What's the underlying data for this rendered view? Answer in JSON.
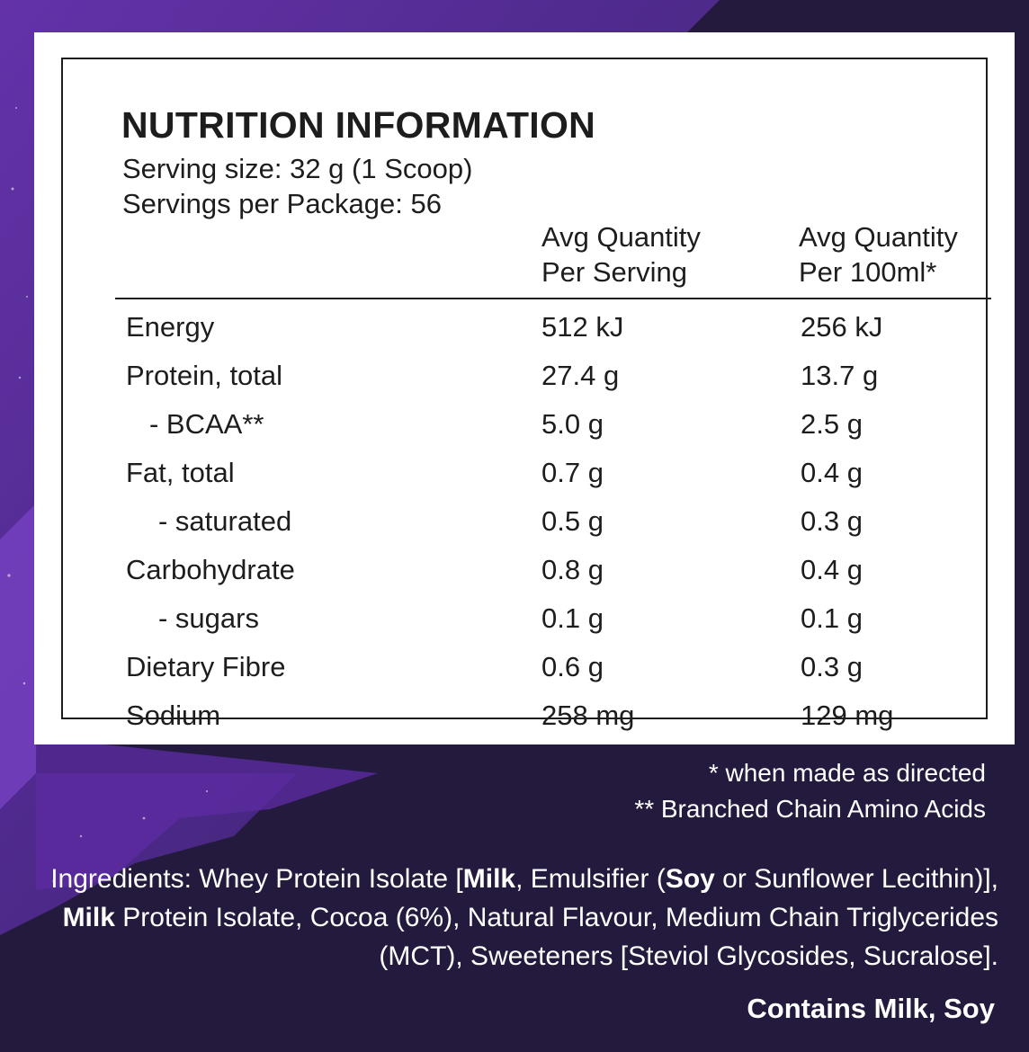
{
  "panel": {
    "title": "NUTRITION INFORMATION",
    "serving_size": "Serving size: 32 g (1 Scoop)",
    "servings_per_package": "Servings per Package: 56",
    "col1_line1": "Avg Quantity",
    "col1_line2": "Per Serving",
    "col2_line1": "Avg Quantity",
    "col2_line2": "Per 100ml*",
    "rows": [
      {
        "name": "Energy",
        "per_serving": "512 kJ",
        "per_100ml": "256 kJ"
      },
      {
        "name": "Protein, total",
        "per_serving": "27.4 g",
        "per_100ml": "13.7 g"
      },
      {
        "name": "- BCAA**",
        "per_serving": "5.0 g",
        "per_100ml": "2.5 g"
      },
      {
        "name": "Fat, total",
        "per_serving": "0.7 g",
        "per_100ml": "0.4 g"
      },
      {
        "name": "- saturated",
        "per_serving": "0.5 g",
        "per_100ml": "0.3 g"
      },
      {
        "name": "Carbohydrate",
        "per_serving": "0.8 g",
        "per_100ml": "0.4 g"
      },
      {
        "name": "- sugars",
        "per_serving": "0.1 g",
        "per_100ml": "0.1 g"
      },
      {
        "name": "Dietary Fibre",
        "per_serving": "0.6 g",
        "per_100ml": "0.3 g"
      },
      {
        "name": "Sodium",
        "per_serving": "258 mg",
        "per_100ml": "129 mg"
      }
    ]
  },
  "footnotes": {
    "note1": "* when made as directed",
    "note2": "** Branched Chain Amino Acids"
  },
  "ingredients": {
    "p1": "Ingredients: Whey Protein Isolate [",
    "b1": "Milk",
    "p2": ", Emulsifier (",
    "b2": "Soy",
    "p3": " or Sunflower Lecithin)], ",
    "b3": "Milk",
    "p4": " Protein Isolate, Cocoa (6%), Natural Flavour, Medium Chain Triglycerides (MCT), Sweeteners [Steviol Glycosides, Sucralose]."
  },
  "allergens": "Contains Milk, Soy",
  "colors": {
    "background": "#231a3d",
    "splash": "#5b2ba0",
    "panel": "#ffffff",
    "text_dark": "#1d1d1d",
    "text_light": "#ffffff"
  }
}
